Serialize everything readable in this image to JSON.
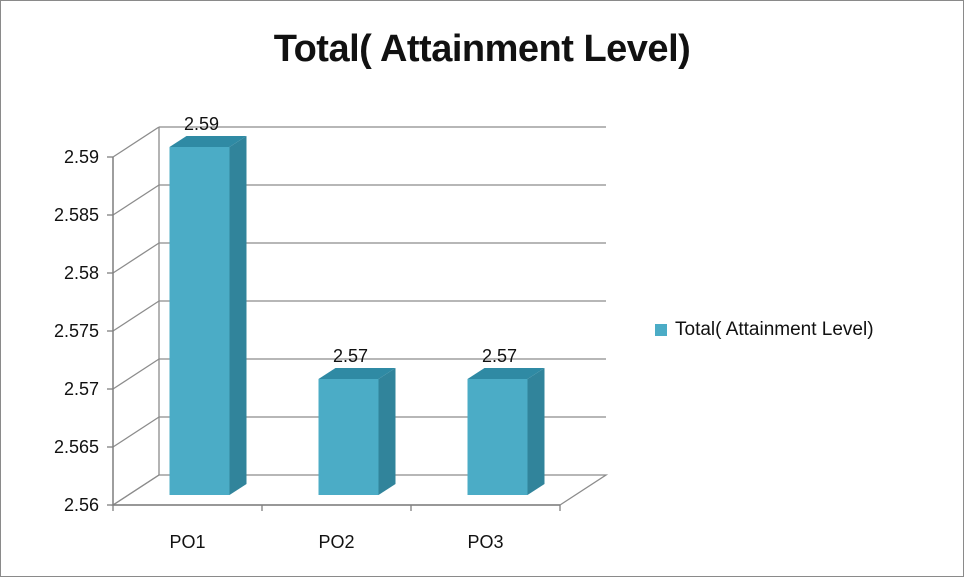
{
  "chart_data": {
    "type": "bar",
    "title": "Total( Attainment Level)",
    "categories": [
      "PO1",
      "PO2",
      "PO3"
    ],
    "series": [
      {
        "name": "Total( Attainment Level)",
        "values": [
          2.59,
          2.57,
          2.57
        ],
        "color": "#4bacc6"
      }
    ],
    "data_labels": [
      "2.59",
      "2.57",
      "2.57"
    ],
    "ylim": [
      2.56,
      2.59
    ],
    "yticks": [
      "2.56",
      "2.565",
      "2.57",
      "2.575",
      "2.58",
      "2.585",
      "2.59"
    ],
    "xlabel": "",
    "ylabel": "",
    "grid": true,
    "legend_position": "right",
    "style": "3d-column"
  }
}
